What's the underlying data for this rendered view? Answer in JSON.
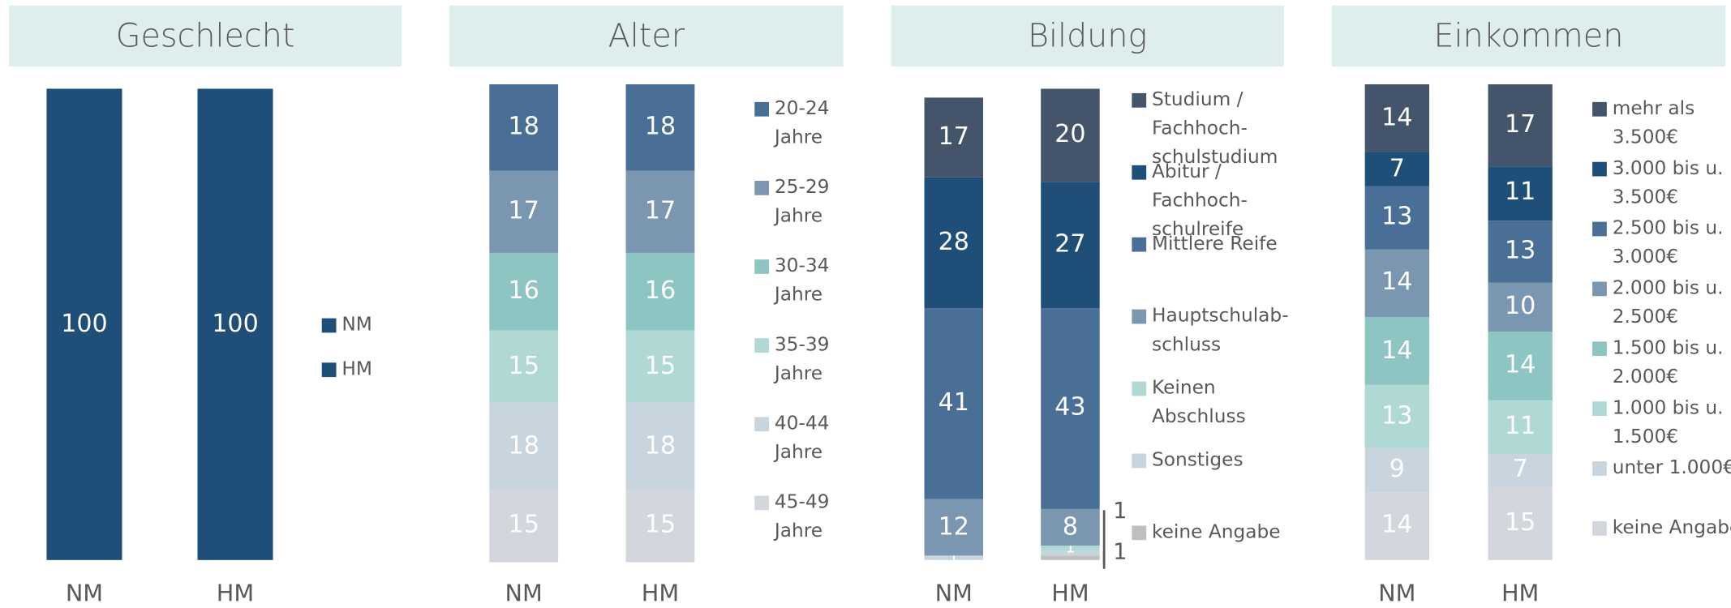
{
  "chart_data": [
    {
      "type": "bar",
      "stacked": true,
      "title": "Geschlecht",
      "categories": [
        "NM",
        "HM"
      ],
      "series": [
        {
          "name": "NM",
          "color": "#1f4e79",
          "values": [
            100,
            null
          ]
        },
        {
          "name": "HM",
          "color": "#1f4e79",
          "values": [
            null,
            100
          ]
        }
      ]
    },
    {
      "type": "bar",
      "stacked": true,
      "title": "Alter",
      "categories": [
        "NM",
        "HM"
      ],
      "series": [
        {
          "name": "20-24 Jahre",
          "color": "#4a6f96",
          "values": [
            18,
            18
          ]
        },
        {
          "name": "25-29 Jahre",
          "color": "#7a96b0",
          "values": [
            17,
            17
          ]
        },
        {
          "name": "30-34 Jahre",
          "color": "#8cc5c2",
          "values": [
            16,
            16
          ]
        },
        {
          "name": "35-39 Jahre",
          "color": "#b0d9d6",
          "values": [
            15,
            15
          ]
        },
        {
          "name": "40-44 Jahre",
          "color": "#c9d5de",
          "values": [
            18,
            18
          ]
        },
        {
          "name": "45-49 Jahre",
          "color": "#d3d6dd",
          "values": [
            15,
            15
          ]
        }
      ]
    },
    {
      "type": "bar",
      "stacked": true,
      "title": "Bildung",
      "categories": [
        "NM",
        "HM"
      ],
      "series": [
        {
          "name": "Studium / Fachhoch-schulstudium",
          "color": "#44546a",
          "values": [
            17,
            20
          ]
        },
        {
          "name": "Abitur / Fachhoch-schulreife",
          "color": "#1f4e79",
          "values": [
            28,
            27
          ]
        },
        {
          "name": "Mittlere Reife",
          "color": "#4a6f96",
          "values": [
            41,
            43
          ]
        },
        {
          "name": "Hauptschulab-schluss",
          "color": "#7a96b0",
          "values": [
            12,
            8
          ]
        },
        {
          "name": "Keinen Abschluss",
          "color": "#b0d9d6",
          "values": [
            null,
            1
          ]
        },
        {
          "name": "Sonstiges",
          "color": "#c9d5de",
          "values": [
            1,
            1
          ]
        },
        {
          "name": "keine Angabe",
          "color": "#bfbfbf",
          "values": [
            null,
            1
          ]
        }
      ]
    },
    {
      "type": "bar",
      "stacked": true,
      "title": "Einkommen",
      "categories": [
        "NM",
        "HM"
      ],
      "series": [
        {
          "name": "mehr als 3.500€",
          "color": "#44546a",
          "values": [
            14,
            17
          ]
        },
        {
          "name": "3.000 bis u. 3.500€",
          "color": "#1f4e79",
          "values": [
            7,
            11
          ]
        },
        {
          "name": "2.500 bis u. 3.000€",
          "color": "#4a6f96",
          "values": [
            13,
            13
          ]
        },
        {
          "name": "2.000 bis u. 2.500€",
          "color": "#7a96b0",
          "values": [
            14,
            10
          ]
        },
        {
          "name": "1.500 bis u. 2.000€",
          "color": "#8cc5c2",
          "values": [
            14,
            14
          ]
        },
        {
          "name": "1.000 bis u. 1.500€",
          "color": "#b0d9d6",
          "values": [
            13,
            11
          ]
        },
        {
          "name": "unter 1.000€",
          "color": "#c9d5de",
          "values": [
            9,
            7
          ]
        },
        {
          "name": "keine Angabe",
          "color": "#d3d6dd",
          "values": [
            14,
            15
          ]
        }
      ]
    }
  ]
}
